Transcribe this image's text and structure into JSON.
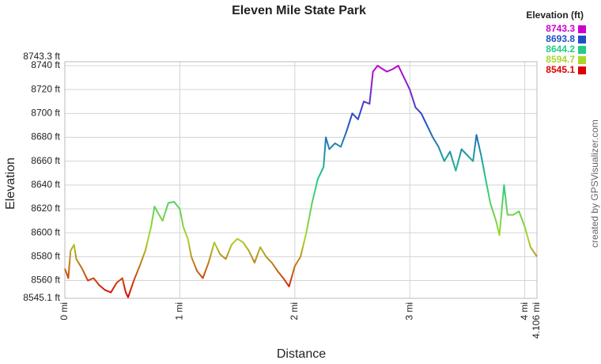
{
  "chart_data": {
    "type": "line",
    "title": "Eleven Mile State Park",
    "x_label": "Distance",
    "y_label": "Elevation",
    "credit": "created by GPSVisualizer.com",
    "legend_title": "Elevation (ft)",
    "legend_position": "top-right",
    "grid": true,
    "color_scale": [
      {
        "value": 8743.3,
        "color": "#cc00cc"
      },
      {
        "value": 8693.8,
        "color": "#1f4fc8"
      },
      {
        "value": 8644.2,
        "color": "#22cc88"
      },
      {
        "value": 8594.7,
        "color": "#a8d62a"
      },
      {
        "value": 8545.1,
        "color": "#dd0000"
      }
    ],
    "xlim": [
      0,
      4.106
    ],
    "ylim": [
      8545.1,
      8743.3
    ],
    "xticks": [
      {
        "value": 0,
        "label": "0 mi"
      },
      {
        "value": 1,
        "label": "1 mi"
      },
      {
        "value": 2,
        "label": "2 mi"
      },
      {
        "value": 3,
        "label": "3 mi"
      },
      {
        "value": 4,
        "label": "4 mi"
      },
      {
        "value": 4.106,
        "label": "4.106 mi"
      }
    ],
    "yticks": [
      {
        "value": 8545.1,
        "label": "8545.1 ft"
      },
      {
        "value": 8560,
        "label": "8560 ft"
      },
      {
        "value": 8580,
        "label": "8580 ft"
      },
      {
        "value": 8600,
        "label": "8600 ft"
      },
      {
        "value": 8620,
        "label": "8620 ft"
      },
      {
        "value": 8640,
        "label": "8640 ft"
      },
      {
        "value": 8660,
        "label": "8660 ft"
      },
      {
        "value": 8680,
        "label": "8680 ft"
      },
      {
        "value": 8700,
        "label": "8700 ft"
      },
      {
        "value": 8720,
        "label": "8720 ft"
      },
      {
        "value": 8740,
        "label": "8740 ft"
      },
      {
        "value": 8743.3,
        "label": "8743.3 ft"
      }
    ],
    "x": [
      0,
      0.03,
      0.05,
      0.08,
      0.1,
      0.15,
      0.2,
      0.25,
      0.3,
      0.35,
      0.4,
      0.45,
      0.5,
      0.53,
      0.55,
      0.6,
      0.65,
      0.7,
      0.75,
      0.78,
      0.82,
      0.85,
      0.9,
      0.95,
      1,
      1.03,
      1.07,
      1.1,
      1.15,
      1.2,
      1.25,
      1.3,
      1.35,
      1.4,
      1.45,
      1.5,
      1.55,
      1.6,
      1.65,
      1.7,
      1.75,
      1.8,
      1.85,
      1.9,
      1.95,
      2,
      2.05,
      2.1,
      2.15,
      2.2,
      2.25,
      2.27,
      2.3,
      2.35,
      2.4,
      2.45,
      2.5,
      2.55,
      2.6,
      2.65,
      2.68,
      2.72,
      2.75,
      2.8,
      2.85,
      2.9,
      2.95,
      3,
      3.05,
      3.1,
      3.15,
      3.2,
      3.25,
      3.3,
      3.35,
      3.4,
      3.45,
      3.5,
      3.55,
      3.58,
      3.62,
      3.65,
      3.7,
      3.75,
      3.78,
      3.82,
      3.85,
      3.9,
      3.95,
      4,
      4.05,
      4.106
    ],
    "values": [
      8570,
      8562,
      8585,
      8590,
      8578,
      8570,
      8560,
      8562,
      8556,
      8552,
      8550,
      8558,
      8562,
      8550,
      8546,
      8560,
      8572,
      8585,
      8605,
      8622,
      8615,
      8610,
      8625,
      8626,
      8620,
      8605,
      8595,
      8580,
      8568,
      8562,
      8575,
      8592,
      8582,
      8578,
      8590,
      8595,
      8592,
      8585,
      8575,
      8588,
      8580,
      8575,
      8568,
      8562,
      8555,
      8572,
      8580,
      8600,
      8625,
      8645,
      8655,
      8680,
      8670,
      8675,
      8672,
      8685,
      8700,
      8695,
      8710,
      8708,
      8735,
      8740,
      8738,
      8735,
      8737,
      8740,
      8730,
      8720,
      8705,
      8700,
      8690,
      8680,
      8672,
      8660,
      8668,
      8652,
      8670,
      8665,
      8660,
      8682,
      8665,
      8650,
      8625,
      8610,
      8598,
      8640,
      8615,
      8615,
      8618,
      8605,
      8588,
      8580
    ]
  }
}
